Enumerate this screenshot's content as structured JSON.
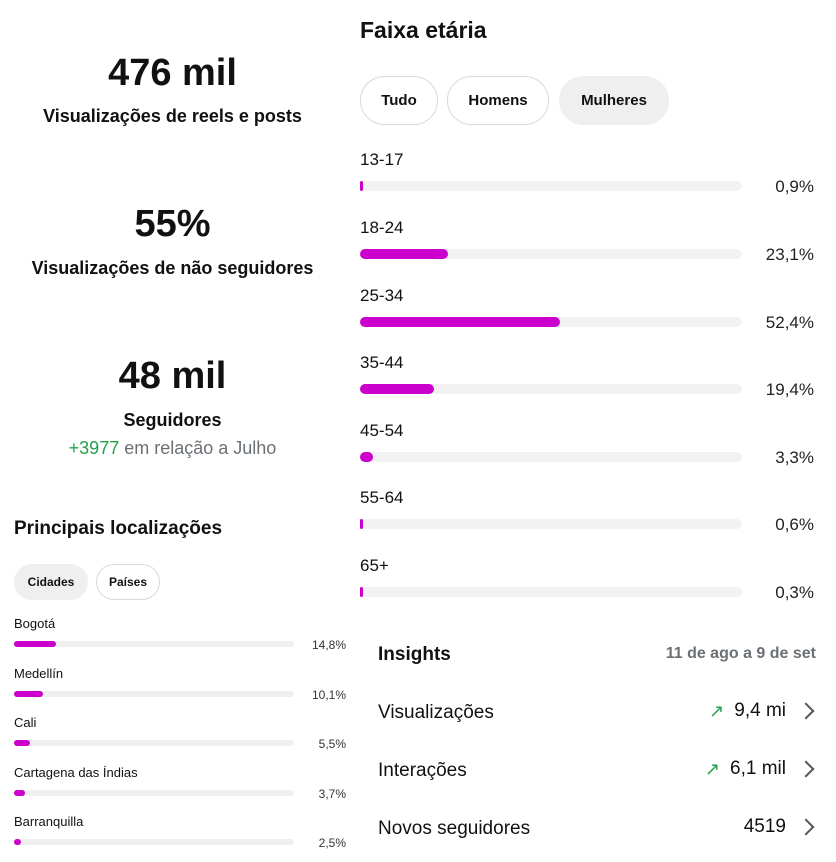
{
  "stats": {
    "views": {
      "value": "476 mil",
      "label": "Visualizações de reels e posts"
    },
    "non_followers": {
      "value": "55%",
      "label": "Visualizações de não seguidores"
    },
    "followers": {
      "value": "48 mil",
      "label": "Seguidores",
      "delta": "+3977",
      "delta_text": "em relação a Julho"
    }
  },
  "locations": {
    "title": "Principais localizações",
    "tabs": [
      {
        "label": "Cidades",
        "active": true
      },
      {
        "label": "Países",
        "active": false
      }
    ],
    "items": [
      {
        "name": "Bogotá",
        "percent": "14,8%",
        "value": 14.8
      },
      {
        "name": "Medellín",
        "percent": "10,1%",
        "value": 10.1
      },
      {
        "name": "Cali",
        "percent": "5,5%",
        "value": 5.5
      },
      {
        "name": "Cartagena das Índias",
        "percent": "3,7%",
        "value": 3.7
      },
      {
        "name": "Barranquilla",
        "percent": "2,5%",
        "value": 2.5
      }
    ]
  },
  "age": {
    "title": "Faixa etária",
    "tabs": [
      {
        "label": "Tudo",
        "active": false
      },
      {
        "label": "Homens",
        "active": false
      },
      {
        "label": "Mulheres",
        "active": true
      }
    ],
    "items": [
      {
        "range": "13-17",
        "percent": "0,9%",
        "value": 0.9
      },
      {
        "range": "18-24",
        "percent": "23,1%",
        "value": 23.1
      },
      {
        "range": "25-34",
        "percent": "52,4%",
        "value": 52.4
      },
      {
        "range": "35-44",
        "percent": "19,4%",
        "value": 19.4
      },
      {
        "range": "45-54",
        "percent": "3,3%",
        "value": 3.3
      },
      {
        "range": "55-64",
        "percent": "0,6%",
        "value": 0.6
      },
      {
        "range": "65+",
        "percent": "0,3%",
        "value": 0.3
      }
    ]
  },
  "insights": {
    "title": "Insights",
    "date_range": "11 de ago a 9 de set",
    "rows": [
      {
        "label": "Visualizações",
        "value": "9,4 mi",
        "trend": "up"
      },
      {
        "label": "Interações",
        "value": "6,1 mil",
        "trend": "up"
      },
      {
        "label": "Novos seguidores",
        "value": "4519",
        "trend": "none"
      }
    ]
  },
  "colors": {
    "bar": "#cc00cc",
    "positive": "#22a04b",
    "track": "#f0f0f0"
  },
  "icons": {
    "trend_up": "arrow-up-right-icon",
    "chevron": "chevron-right-icon"
  }
}
